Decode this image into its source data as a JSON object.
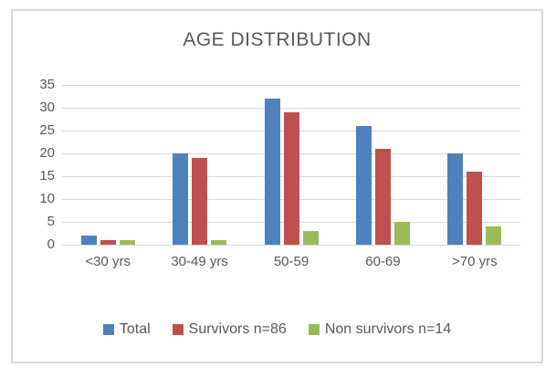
{
  "title": "AGE DISTRIBUTION",
  "colors": {
    "total": "#4F81BD",
    "survivors": "#C0504D",
    "non_survivors": "#9BBB59",
    "text": "#595959",
    "gridline": "#D9D9D9",
    "frame_border": "#D9D9D9",
    "background": "#FFFFFF"
  },
  "chart_data": {
    "type": "bar",
    "title": "AGE DISTRIBUTION",
    "categories": [
      "<30 yrs",
      "30-49 yrs",
      "50-59",
      "60-69",
      ">70 yrs"
    ],
    "series": [
      {
        "name": "Total",
        "slug": "total",
        "color": "#4F81BD",
        "values": [
          2,
          20,
          32,
          26,
          20
        ]
      },
      {
        "name": "Survivors n=86",
        "slug": "survivors",
        "color": "#C0504D",
        "values": [
          1,
          19,
          29,
          21,
          16
        ]
      },
      {
        "name": "Non survivors n=14",
        "slug": "non-survivors",
        "color": "#9BBB59",
        "values": [
          1,
          1,
          3,
          5,
          4
        ]
      }
    ],
    "xlabel": "",
    "ylabel": "",
    "ylim": [
      0,
      35
    ],
    "yticks": [
      0,
      5,
      10,
      15,
      20,
      25,
      30,
      35
    ],
    "grid": true,
    "legend_position": "bottom"
  }
}
